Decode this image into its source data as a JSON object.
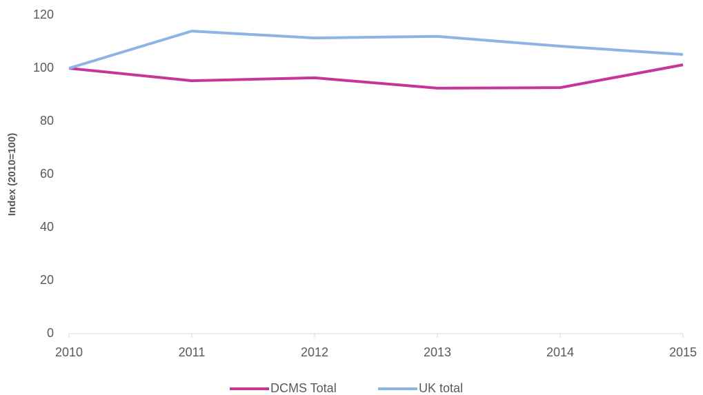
{
  "chart_data": {
    "type": "line",
    "categories": [
      "2010",
      "2011",
      "2012",
      "2013",
      "2014",
      "2015"
    ],
    "series": [
      {
        "name": "DCMS Total",
        "color": "#c7359b",
        "values": [
          100,
          95.3,
          96.4,
          92.5,
          92.7,
          101.3
        ]
      },
      {
        "name": "UK total",
        "color": "#8eb4e3",
        "values": [
          100,
          114.0,
          111.4,
          112.0,
          108.3,
          105.2
        ]
      }
    ],
    "y_label": "Index (2010=100)",
    "ylim": [
      0,
      120
    ],
    "yticks": [
      0,
      20,
      40,
      60,
      80,
      100,
      120
    ],
    "grid": false,
    "legend": "bottom"
  }
}
